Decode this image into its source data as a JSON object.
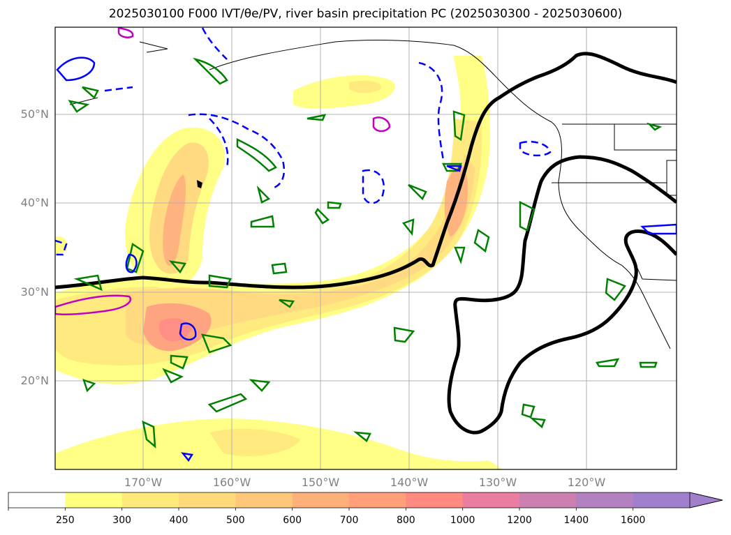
{
  "title": "2025030100 F000 IVT/θe/PV, river basin precipitation PC (2025030300 - 2025030600)",
  "lat_labels": [
    "50°N",
    "40°N",
    "30°N",
    "20°N"
  ],
  "lon_labels": [
    "170°W",
    "160°W",
    "150°W",
    "140°W",
    "130°W",
    "120°W"
  ],
  "colorbar": {
    "levels": [
      "250",
      "300",
      "400",
      "500",
      "600",
      "700",
      "800",
      "1000",
      "1200",
      "1400",
      "1600"
    ],
    "colors": [
      "#ffffff",
      "#ffff80",
      "#ffe97a",
      "#ffd97a",
      "#ffc77a",
      "#ffb07a",
      "#ffa07a",
      "#ff8a80",
      "#e97ea0",
      "#cc80b0",
      "#b380c0",
      "#a080cc"
    ],
    "extend": "max"
  },
  "legend_colors": {
    "ivt_fill": "#ffff80",
    "theta_e_contour": "#000000",
    "pv_positive": "#008000",
    "pv_negative": "#0000ff",
    "precip_pc": "#c000c0",
    "coastline": "#000000",
    "grid": "#b0b0b0"
  }
}
